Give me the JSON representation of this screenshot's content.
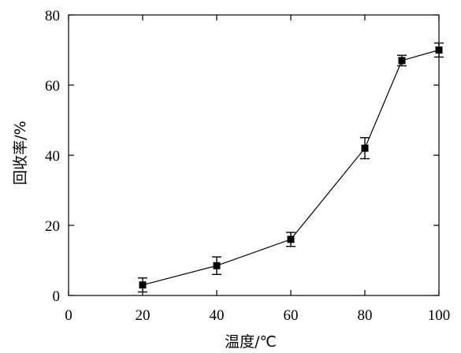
{
  "chart_data": {
    "type": "line",
    "title": "",
    "xlabel": "温度/℃",
    "ylabel": "回收率/%",
    "xlim": [
      0,
      100
    ],
    "ylim": [
      0,
      80
    ],
    "xticks": [
      0,
      20,
      40,
      60,
      80,
      100
    ],
    "yticks": [
      0,
      20,
      40,
      60,
      80
    ],
    "grid": false,
    "legend": "none",
    "series": [
      {
        "x": [
          20,
          40,
          60,
          80,
          90,
          100
        ],
        "y": [
          3,
          8.5,
          16,
          42,
          67,
          70
        ],
        "error": [
          2,
          2.5,
          2,
          3,
          1.5,
          2
        ],
        "marker": "square",
        "color": "#000000"
      }
    ]
  }
}
